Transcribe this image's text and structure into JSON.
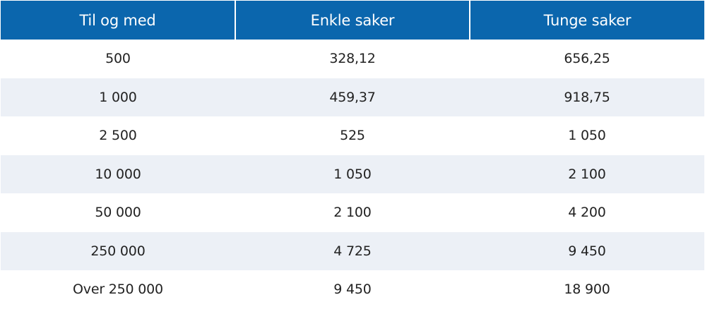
{
  "table": {
    "headers": [
      "Til og med",
      "Enkle saker",
      "Tunge saker"
    ],
    "rows": [
      [
        "500",
        "328,12",
        "656,25"
      ],
      [
        "1 000",
        "459,37",
        "918,75"
      ],
      [
        "2 500",
        "525",
        "1 050"
      ],
      [
        "10 000",
        "1 050",
        "2 100"
      ],
      [
        "50 000",
        "2 100",
        "4 200"
      ],
      [
        "250 000",
        "4 725",
        "9 450"
      ],
      [
        "Over 250 000",
        "9 450",
        "18 900"
      ]
    ]
  },
  "colors": {
    "header_background": "#0b66ad",
    "header_text": "#ffffff",
    "striped_row": "#ecf0f6",
    "body_text": "#222222"
  }
}
